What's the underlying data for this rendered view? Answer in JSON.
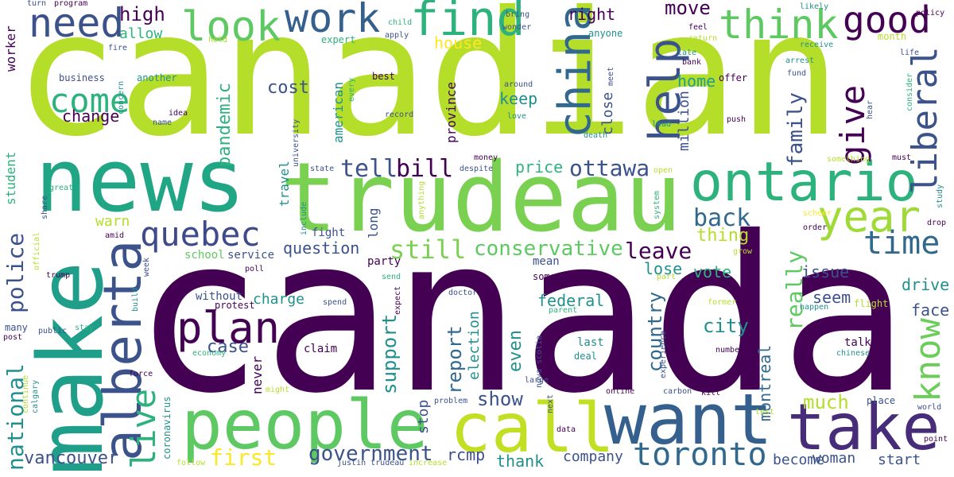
{
  "colors": {
    "purple": "#440154",
    "indigo": "#3b528b",
    "teal": "#21908d",
    "green": "#5ec962",
    "lime": "#b5de2b",
    "yellow": "#fde725"
  },
  "words": {
    "canadian": "canadian",
    "canada": "canada",
    "news": "news",
    "trudeau": "trudeau",
    "make": "make",
    "people": "people",
    "ontario": "ontario",
    "alberta": "alberta",
    "call": "call",
    "want": "want",
    "take": "take",
    "work": "work",
    "look": "look",
    "need": "need",
    "find": "find",
    "think": "think",
    "good": "good",
    "year": "year",
    "help": "help",
    "china": "china",
    "liberal": "liberal",
    "give": "give",
    "plan": "plan",
    "quebec": "quebec",
    "live": "live",
    "come": "come",
    "time": "time",
    "toronto": "toronto",
    "know": "know",
    "ottawa": "ottawa",
    "bill": "bill",
    "tell": "tell",
    "back": "back",
    "still": "still",
    "conservative": "conservative",
    "leave": "leave",
    "police": "police",
    "national": "national",
    "vancouver": "vancouver",
    "government": "government",
    "first": "first",
    "really": "really",
    "family": "family",
    "question": "question",
    "high": "high",
    "allow": "allow",
    "house": "house",
    "move": "move",
    "right": "right",
    "cost": "cost",
    "pandemic": "pandemic",
    "change": "change",
    "keep": "keep",
    "home": "home",
    "price": "price",
    "city": "city",
    "case": "case",
    "country": "country",
    "support": "support",
    "report": "report",
    "show": "show",
    "thank": "thank",
    "company": "company",
    "woman": "woman",
    "become": "become",
    "start": "start",
    "much": "much",
    "montreal": "montreal",
    "federal": "federal",
    "seem": "seem",
    "even": "even",
    "drive": "drive",
    "face": "face",
    "issue": "issue",
    "vote": "vote",
    "lose": "lose",
    "thing": "thing",
    "rcmp": "rcmp",
    "stop": "stop",
    "election": "election",
    "charge": "charge",
    "warn": "warn",
    "school": "school",
    "service": "service",
    "travel": "travel",
    "american": "american",
    "province": "province",
    "close": "close",
    "million": "million",
    "long": "long",
    "fight": "fight",
    "party": "party",
    "never": "never",
    "talk": "talk",
    "last": "last",
    "without": "without",
    "protest": "protest",
    "claim": "claim",
    "deal": "deal",
    "mean": "mean",
    "someone": "someone",
    "worker": "worker",
    "student": "student",
    "business": "business",
    "another": "another",
    "idea": "idea",
    "name": "name",
    "concern": "concern",
    "best": "best",
    "record": "record",
    "around": "around",
    "love": "love",
    "offer": "offer",
    "push": "push",
    "lead": "lead",
    "fund": "fund",
    "arrest": "arrest",
    "life": "life",
    "hear": "hear",
    "consider": "consider",
    "bank": "bank",
    "late": "late",
    "group": "group",
    "return": "return",
    "receive": "receive",
    "likely": "likely",
    "policy": "policy",
    "feel": "feel",
    "month": "month",
    "turn": "turn",
    "program": "program",
    "child": "child",
    "apply": "apply",
    "bring": "bring",
    "wonder": "wonder",
    "anyone": "anyone",
    "expert": "expert",
    "hold": "hold",
    "fire": "fire",
    "every": "every",
    "meet": "meet",
    "university": "university",
    "state": "state",
    "despite": "despite",
    "money": "money",
    "death": "death",
    "must": "must",
    "something": "something",
    "open": "open",
    "great": "great",
    "share": "share",
    "amid": "amid",
    "official": "official",
    "trump": "trump",
    "week": "week",
    "include": "include",
    "anything": "anything",
    "system": "system",
    "study": "study",
    "drop": "drop",
    "scheer": "scheer",
    "order": "order",
    "grow": "grow",
    "poll": "poll",
    "send": "send",
    "spend": "spend",
    "expect": "expect",
    "doctor": "doctor",
    "parent": "parent",
    "nova_scotia": "nova scotia",
    "part": "part",
    "former": "former",
    "flight": "flight",
    "happen": "happen",
    "chinese": "chinese",
    "number": "number",
    "experience": "experience",
    "many": "many",
    "post": "post",
    "public": "public",
    "stay": "stay",
    "build": "build",
    "economy": "economy",
    "force": "force",
    "continue": "continue",
    "calgary": "calgary",
    "might": "might",
    "coronavirus": "coronavirus",
    "problem": "problem",
    "large": "large",
    "next": "next",
    "online": "online",
    "carbon": "carbon",
    "kill": "kill",
    "test": "test",
    "place": "place",
    "world": "world",
    "point": "point",
    "data": "data",
    "follow": "follow",
    "justin_trudeau": "justin trudeau",
    "increase": "increase"
  }
}
